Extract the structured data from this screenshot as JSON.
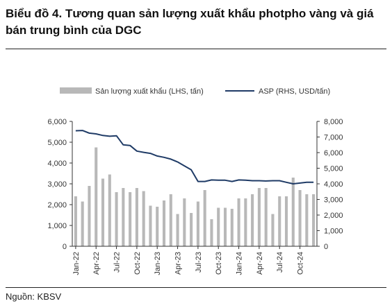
{
  "title": "Biểu đồ 4. Tương quan sản lượng xuất khẩu photpho vàng và giá bán trung bình của DGC",
  "source": "Nguồn: KBSV",
  "colors": {
    "bar": "#b8b8b8",
    "line": "#1f3b66",
    "axis": "#333333"
  },
  "chart_data": {
    "type": "bar+line",
    "legend_position": "top",
    "grid": false,
    "categories": [
      "Jan-22",
      "Feb-22",
      "Mar-22",
      "Apr-22",
      "May-22",
      "Jun-22",
      "Jul-22",
      "Aug-22",
      "Sep-22",
      "Oct-22",
      "Nov-22",
      "Dec-22",
      "Jan-23",
      "Feb-23",
      "Mar-23",
      "Apr-23",
      "May-23",
      "Jun-23",
      "Jul-23",
      "Aug-23",
      "Sep-23",
      "Oct-23",
      "Nov-23",
      "Dec-23",
      "Jan-24",
      "Feb-24",
      "Mar-24",
      "Apr-24",
      "May-24",
      "Jun-24",
      "Jul-24",
      "Aug-24",
      "Sep-24",
      "Oct-24",
      "Nov-24",
      "Dec-24"
    ],
    "x_tick_labels": [
      "Jan-22",
      "Apr-22",
      "Jul-22",
      "Oct-22",
      "Jan-23",
      "Apr-23",
      "Jul-23",
      "Oct-23",
      "Jan-24",
      "Apr-24",
      "Jul-24",
      "Oct-24"
    ],
    "x_tick_every": 3,
    "left_axis": {
      "ylim": [
        0,
        6000
      ],
      "ticks": [
        "0",
        "1,000",
        "2,000",
        "3,000",
        "4,000",
        "5,000",
        "6,000"
      ]
    },
    "right_axis": {
      "ylim": [
        0,
        8000
      ],
      "ticks": [
        "0",
        "1,000",
        "2,000",
        "3,000",
        "4,000",
        "5,000",
        "6,000",
        "7,000",
        "8,000"
      ]
    },
    "series": [
      {
        "name": "Sản lượng xuất khẩu (LHS, tấn)",
        "type": "bar",
        "axis": "left",
        "values": [
          2400,
          2150,
          2900,
          4750,
          3250,
          3450,
          2600,
          2800,
          2600,
          2800,
          2650,
          1950,
          1900,
          2200,
          2500,
          1550,
          2300,
          1600,
          2150,
          2700,
          1300,
          1850,
          1850,
          1800,
          2300,
          2300,
          2500,
          2800,
          2800,
          1550,
          2400,
          2400,
          3300,
          2700,
          2500,
          2500
        ]
      },
      {
        "name": "ASP (RHS, USD/tấn)",
        "type": "line",
        "axis": "right",
        "values": [
          7400,
          7420,
          7250,
          7200,
          7100,
          7050,
          7080,
          6500,
          6460,
          6100,
          6020,
          5950,
          5780,
          5700,
          5580,
          5400,
          5150,
          4900,
          4150,
          4150,
          4250,
          4230,
          4230,
          4150,
          4250,
          4230,
          4200,
          4200,
          4180,
          4200,
          4200,
          4100,
          4000,
          4050,
          4100,
          4100
        ]
      }
    ]
  }
}
